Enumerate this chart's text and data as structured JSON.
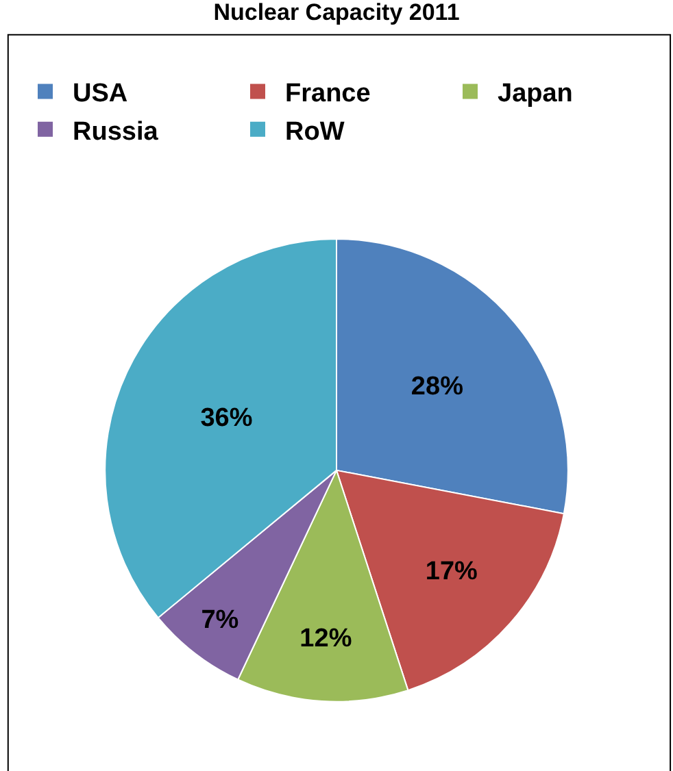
{
  "chart_data": {
    "type": "pie",
    "title": "Nuclear Capacity 2011",
    "categories": [
      "USA",
      "France",
      "Japan",
      "Russia",
      "RoW"
    ],
    "values": [
      28,
      17,
      12,
      7,
      36
    ],
    "colors": [
      "#4f81bd",
      "#c0504d",
      "#9bbb59",
      "#8064a2",
      "#4bacc6"
    ],
    "value_labels": [
      "28%",
      "17%",
      "12%",
      "7%",
      "36%"
    ],
    "legend": "top"
  }
}
